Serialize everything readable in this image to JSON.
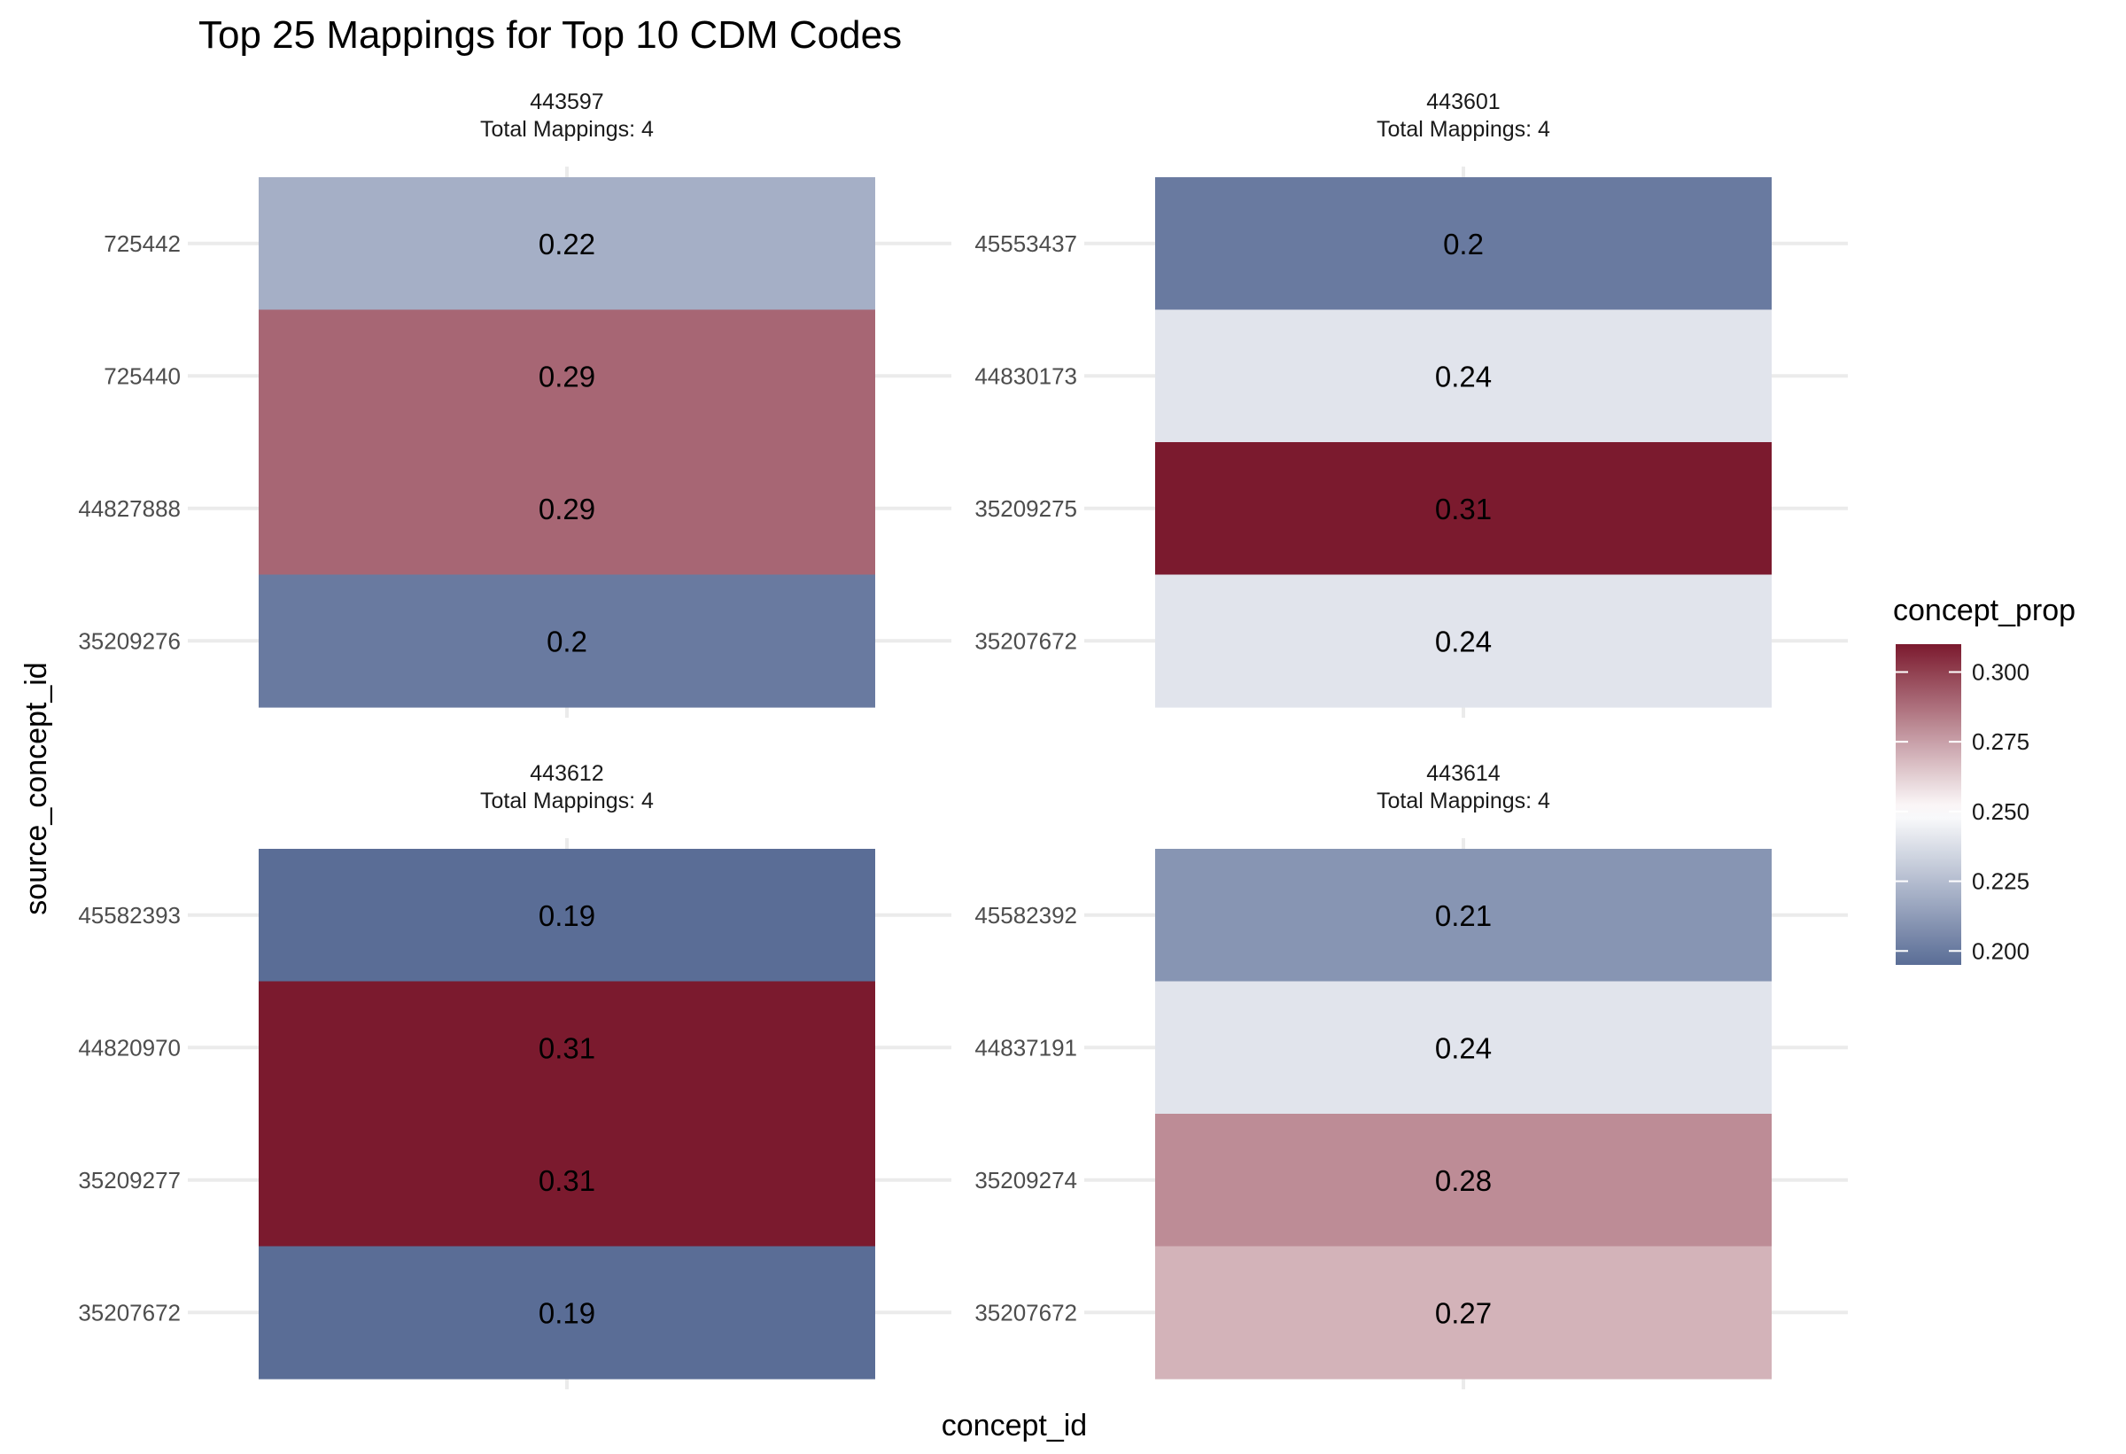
{
  "chart_data": {
    "type": "heatmap",
    "title": "Top 25 Mappings for Top 10 CDM Codes",
    "xlabel": "concept_id",
    "ylabel": "source_concept_id",
    "legend": {
      "title": "concept_prop",
      "range": [
        0.195,
        0.31
      ],
      "midpoint": 0.25,
      "ticks": [
        "0.200",
        "0.225",
        "0.250",
        "0.275",
        "0.300"
      ],
      "tick_values": [
        0.2,
        0.225,
        0.25,
        0.275,
        0.3
      ],
      "colors": {
        "low": "#5a6d96",
        "mid": "#ffffff",
        "high": "#7b1a2e"
      },
      "placement": "right"
    },
    "panels": [
      {
        "concept_id": "443597",
        "strip_label": "Total Mappings: 4",
        "rows": [
          {
            "source_concept_id": "725442",
            "value": 0.22
          },
          {
            "source_concept_id": "725440",
            "value": 0.29
          },
          {
            "source_concept_id": "44827888",
            "value": 0.29
          },
          {
            "source_concept_id": "35209276",
            "value": 0.2
          }
        ]
      },
      {
        "concept_id": "443601",
        "strip_label": "Total Mappings: 4",
        "rows": [
          {
            "source_concept_id": "45553437",
            "value": 0.2
          },
          {
            "source_concept_id": "44830173",
            "value": 0.24
          },
          {
            "source_concept_id": "35209275",
            "value": 0.31
          },
          {
            "source_concept_id": "35207672",
            "value": 0.24
          }
        ]
      },
      {
        "concept_id": "443612",
        "strip_label": "Total Mappings: 4",
        "rows": [
          {
            "source_concept_id": "45582393",
            "value": 0.19
          },
          {
            "source_concept_id": "44820970",
            "value": 0.31
          },
          {
            "source_concept_id": "35209277",
            "value": 0.31
          },
          {
            "source_concept_id": "35207672",
            "value": 0.19
          }
        ]
      },
      {
        "concept_id": "443614",
        "strip_label": "Total Mappings: 4",
        "rows": [
          {
            "source_concept_id": "45582392",
            "value": 0.21
          },
          {
            "source_concept_id": "44837191",
            "value": 0.24
          },
          {
            "source_concept_id": "35209274",
            "value": 0.28
          },
          {
            "source_concept_id": "35207672",
            "value": 0.27
          }
        ]
      }
    ]
  }
}
